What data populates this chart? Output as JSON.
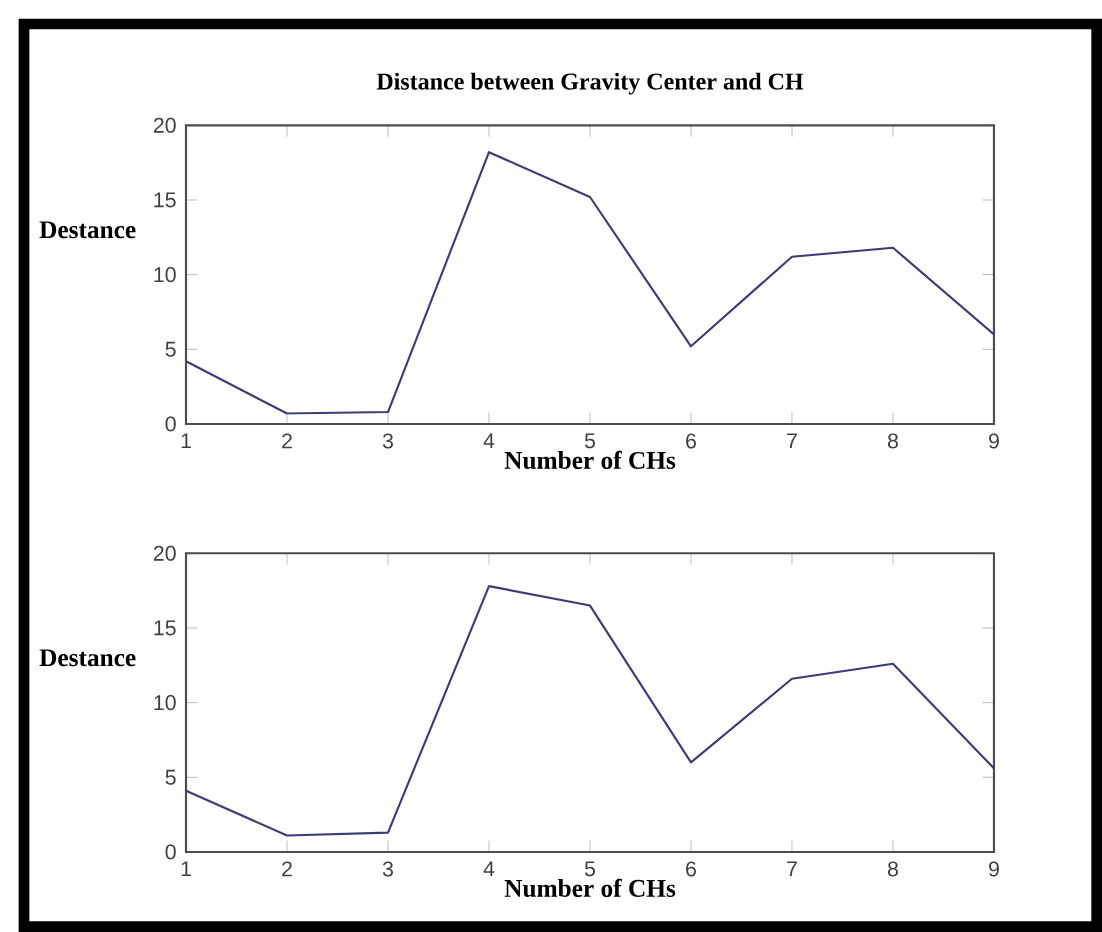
{
  "chart_data": [
    {
      "type": "line",
      "title": "Distance between Gravity  Center and CH",
      "xlabel": "Number of CHs",
      "ylabel": "Destance",
      "x": [
        1,
        2,
        3,
        4,
        5,
        6,
        7,
        8,
        9
      ],
      "xlim": [
        1,
        9
      ],
      "xticks": [
        1,
        2,
        3,
        4,
        5,
        6,
        7,
        8,
        9
      ],
      "ylim": [
        0,
        20
      ],
      "yticks": [
        0,
        5,
        10,
        15,
        20
      ],
      "series": [
        {
          "color": "#3c3c78",
          "values": [
            4.2,
            0.7,
            0.8,
            18.2,
            15.2,
            5.2,
            11.2,
            11.8,
            6.0
          ]
        }
      ]
    },
    {
      "type": "line",
      "xlabel": "Number of CHs",
      "ylabel": "Destance",
      "x": [
        1,
        2,
        3,
        4,
        5,
        6,
        7,
        8,
        9
      ],
      "xlim": [
        1,
        9
      ],
      "xticks": [
        1,
        2,
        3,
        4,
        5,
        6,
        7,
        8,
        9
      ],
      "ylim": [
        0,
        20
      ],
      "yticks": [
        0,
        5,
        10,
        15,
        20
      ],
      "series": [
        {
          "color": "#3c3c78",
          "values": [
            4.1,
            1.1,
            1.3,
            17.8,
            16.5,
            6.0,
            11.6,
            12.6,
            5.6
          ]
        }
      ]
    }
  ]
}
